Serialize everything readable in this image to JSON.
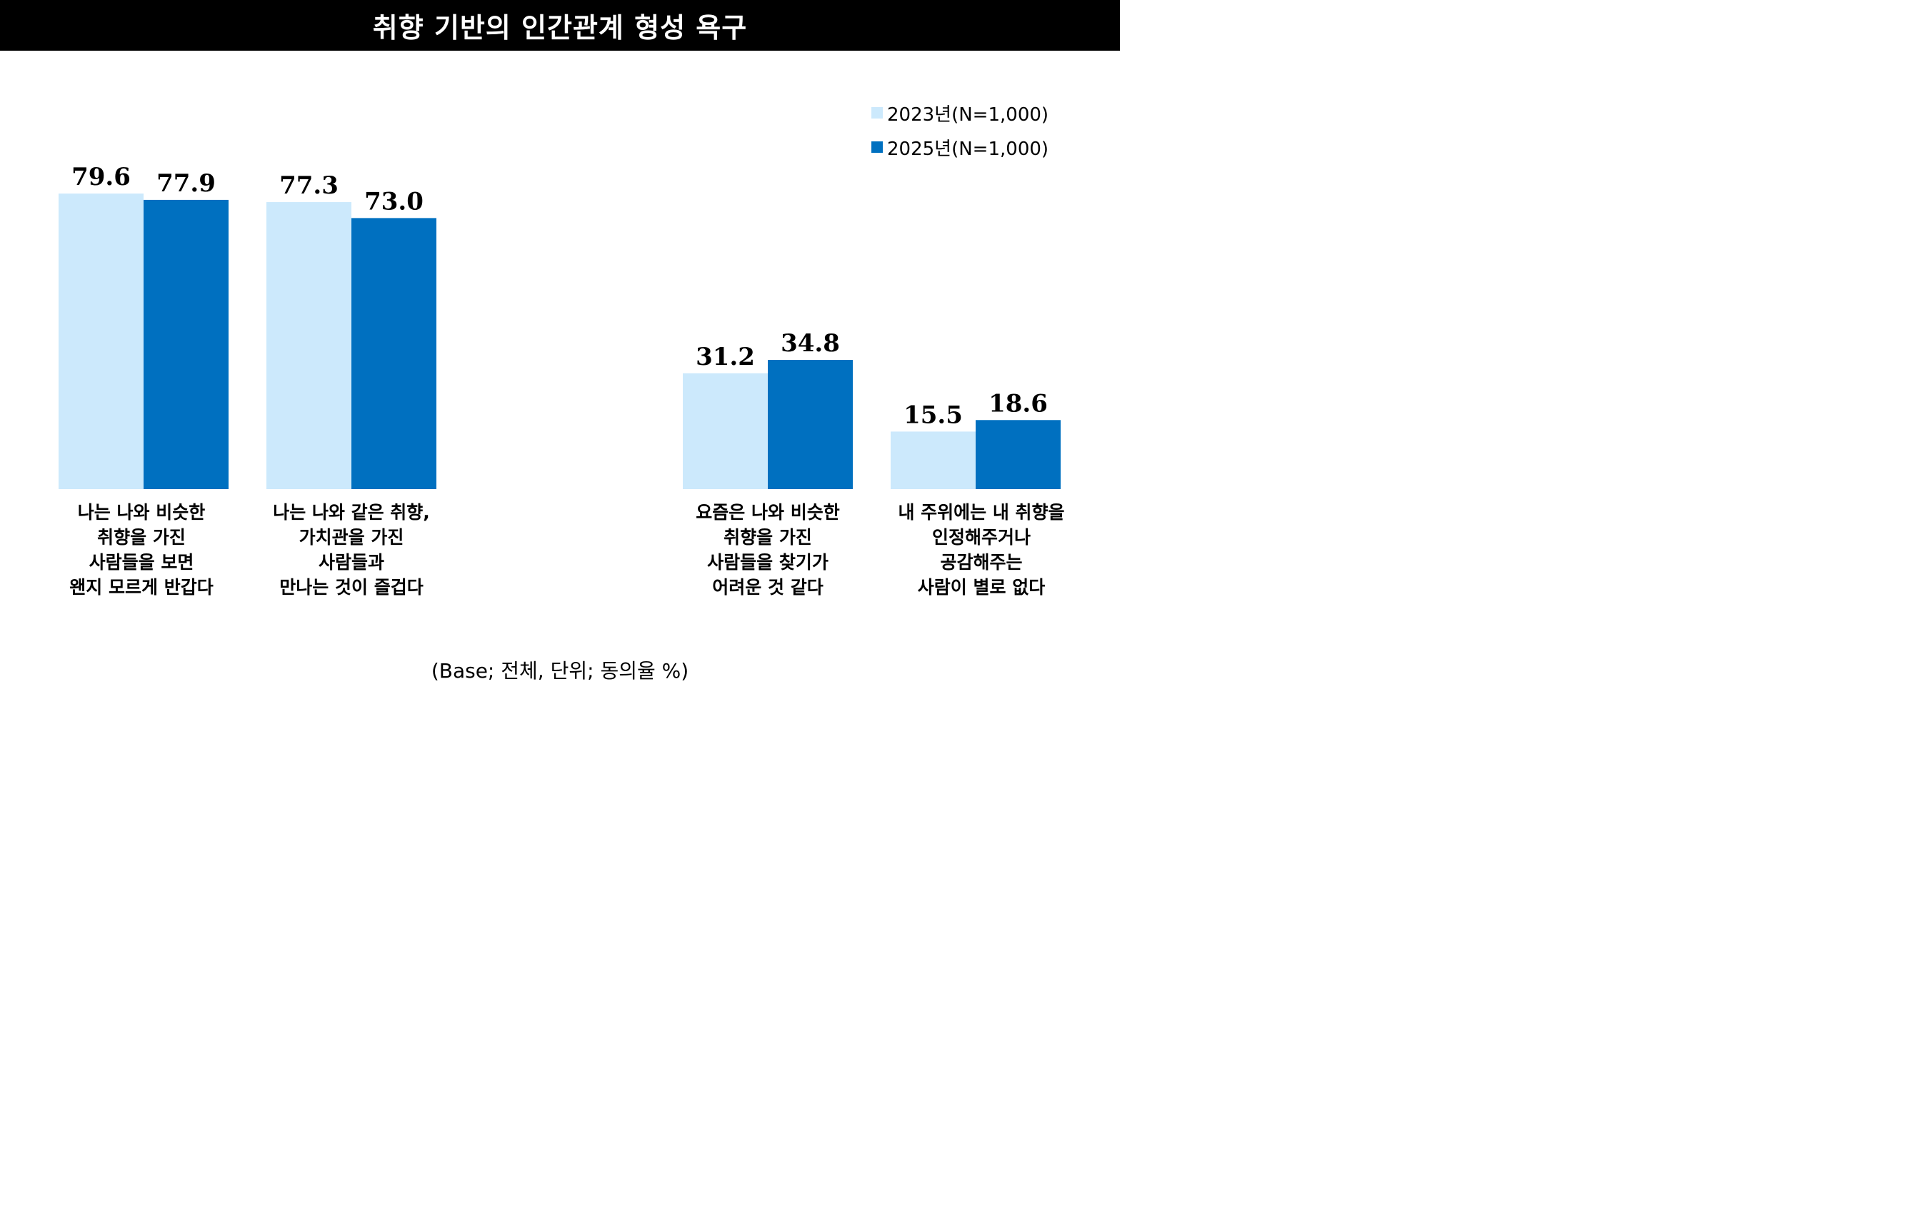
{
  "title": "취향 기반의 인간관계 형성 욕구",
  "footnote": "(Base; 전체, 단위; 동의율 %)",
  "colors": {
    "series_2023": "#cce9fc",
    "series_2025": "#0070c0"
  },
  "chart_data": {
    "type": "bar",
    "title": "취향 기반의 인간관계 형성 욕구",
    "categories": [
      [
        "나는 나와 비슷한",
        "취향을 가진",
        "사람들을 보면",
        "왠지 모르게 반갑다"
      ],
      [
        "나는 나와 같은 취향,",
        "가치관을 가진",
        "사람들과",
        "만나는 것이 즐겁다"
      ],
      [
        "요즘은 나와 비슷한",
        "취향을 가진",
        "사람들을 찾기가",
        "어려운 것 같다"
      ],
      [
        "내 주위에는 내 취향을",
        "인정해주거나",
        "공감해주는",
        "사람이 별로 없다"
      ]
    ],
    "series": [
      {
        "name": "2023년(N=1,000)",
        "values": [
          79.6,
          77.3,
          31.2,
          15.5
        ],
        "labels": [
          "79.6",
          "77.3",
          "31.2",
          "15.5"
        ]
      },
      {
        "name": "2025년(N=1,000)",
        "values": [
          77.9,
          73.0,
          34.8,
          18.6
        ],
        "labels": [
          "77.9",
          "73.0",
          "34.8",
          "18.6"
        ]
      }
    ],
    "legend_position": "top-right",
    "grid": false,
    "ylim": [
      0,
      100
    ]
  }
}
